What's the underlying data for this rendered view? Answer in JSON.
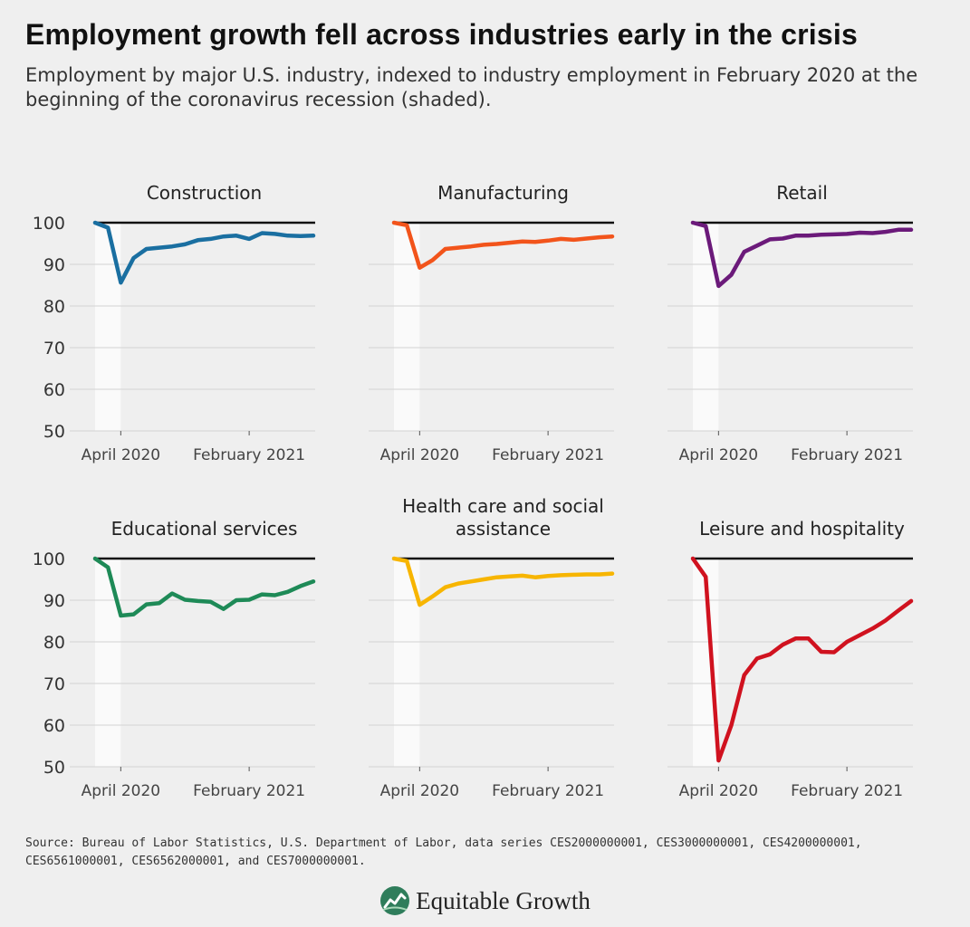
{
  "header": {
    "title": "Employment growth fell across industries early in the crisis",
    "subtitle": "Employment by major U.S. industry, indexed to industry employment in February 2020 at the beginning of the coronavirus recession (shaded)."
  },
  "chart_data": [
    {
      "type": "line",
      "title": "Construction",
      "color": "#1a6fa1",
      "x": [
        "2020-02",
        "2020-03",
        "2020-04",
        "2020-05",
        "2020-06",
        "2020-07",
        "2020-08",
        "2020-09",
        "2020-10",
        "2020-11",
        "2020-12",
        "2021-01",
        "2021-02",
        "2021-03",
        "2021-04",
        "2021-05",
        "2021-06",
        "2021-07"
      ],
      "values": [
        100,
        98.8,
        85.6,
        91.5,
        93.7,
        94.0,
        94.3,
        94.8,
        95.8,
        96.1,
        96.7,
        96.9,
        96.1,
        97.5,
        97.3,
        96.9,
        96.8,
        96.9
      ],
      "ylim": [
        50,
        100
      ],
      "yticks": [
        100,
        90,
        80,
        70,
        60,
        50
      ],
      "xticks": [
        "April 2020",
        "February 2021"
      ],
      "recession_shading": [
        "2020-02",
        "2020-04"
      ],
      "baseline": 100
    },
    {
      "type": "line",
      "title": "Manufacturing",
      "color": "#f2541b",
      "x": [
        "2020-02",
        "2020-03",
        "2020-04",
        "2020-05",
        "2020-06",
        "2020-07",
        "2020-08",
        "2020-09",
        "2020-10",
        "2020-11",
        "2020-12",
        "2021-01",
        "2021-02",
        "2021-03",
        "2021-04",
        "2021-05",
        "2021-06",
        "2021-07"
      ],
      "values": [
        100,
        99.4,
        89.2,
        91.0,
        93.7,
        94.0,
        94.3,
        94.7,
        94.9,
        95.2,
        95.5,
        95.4,
        95.7,
        96.1,
        95.9,
        96.2,
        96.5,
        96.7
      ],
      "ylim": [
        50,
        100
      ],
      "yticks": [
        100,
        90,
        80,
        70,
        60,
        50
      ],
      "xticks": [
        "April 2020",
        "February 2021"
      ],
      "recession_shading": [
        "2020-02",
        "2020-04"
      ],
      "baseline": 100
    },
    {
      "type": "line",
      "title": "Retail",
      "color": "#6b1a7a",
      "x": [
        "2020-02",
        "2020-03",
        "2020-04",
        "2020-05",
        "2020-06",
        "2020-07",
        "2020-08",
        "2020-09",
        "2020-10",
        "2020-11",
        "2020-12",
        "2021-01",
        "2021-02",
        "2021-03",
        "2021-04",
        "2021-05",
        "2021-06",
        "2021-07"
      ],
      "values": [
        100,
        99.2,
        84.8,
        87.5,
        93.0,
        94.5,
        96.0,
        96.2,
        96.9,
        96.9,
        97.1,
        97.2,
        97.3,
        97.6,
        97.5,
        97.8,
        98.3,
        98.3
      ],
      "ylim": [
        50,
        100
      ],
      "yticks": [
        100,
        90,
        80,
        70,
        60,
        50
      ],
      "xticks": [
        "April 2020",
        "February 2021"
      ],
      "recession_shading": [
        "2020-02",
        "2020-04"
      ],
      "baseline": 100
    },
    {
      "type": "line",
      "title": "Educational services",
      "color": "#1e8a57",
      "x": [
        "2020-02",
        "2020-03",
        "2020-04",
        "2020-05",
        "2020-06",
        "2020-07",
        "2020-08",
        "2020-09",
        "2020-10",
        "2020-11",
        "2020-12",
        "2021-01",
        "2021-02",
        "2021-03",
        "2021-04",
        "2021-05",
        "2021-06",
        "2021-07"
      ],
      "values": [
        100,
        97.9,
        86.3,
        86.6,
        89.0,
        89.3,
        91.6,
        90.1,
        89.8,
        89.6,
        87.9,
        90.0,
        90.1,
        91.4,
        91.2,
        92.0,
        93.4,
        94.5
      ],
      "ylim": [
        50,
        100
      ],
      "yticks": [
        100,
        90,
        80,
        70,
        60,
        50
      ],
      "xticks": [
        "April 2020",
        "February 2021"
      ],
      "recession_shading": [
        "2020-02",
        "2020-04"
      ],
      "baseline": 100
    },
    {
      "type": "line",
      "title": "Health care and social assistance",
      "color": "#f7b500",
      "x": [
        "2020-02",
        "2020-03",
        "2020-04",
        "2020-05",
        "2020-06",
        "2020-07",
        "2020-08",
        "2020-09",
        "2020-10",
        "2020-11",
        "2020-12",
        "2021-01",
        "2021-02",
        "2021-03",
        "2021-04",
        "2021-05",
        "2021-06",
        "2021-07"
      ],
      "values": [
        100,
        99.4,
        88.9,
        90.9,
        93.1,
        94.0,
        94.5,
        95.0,
        95.5,
        95.7,
        95.9,
        95.5,
        95.8,
        96.0,
        96.1,
        96.2,
        96.2,
        96.4
      ],
      "ylim": [
        50,
        100
      ],
      "yticks": [
        100,
        90,
        80,
        70,
        60,
        50
      ],
      "xticks": [
        "April 2020",
        "February 2021"
      ],
      "recession_shading": [
        "2020-02",
        "2020-04"
      ],
      "baseline": 100
    },
    {
      "type": "line",
      "title": "Leisure and hospitality",
      "color": "#d0121f",
      "x": [
        "2020-02",
        "2020-03",
        "2020-04",
        "2020-05",
        "2020-06",
        "2020-07",
        "2020-08",
        "2020-09",
        "2020-10",
        "2020-11",
        "2020-12",
        "2021-01",
        "2021-02",
        "2021-03",
        "2021-04",
        "2021-05",
        "2021-06",
        "2021-07"
      ],
      "values": [
        100,
        95.6,
        51.5,
        60.0,
        72.0,
        76.0,
        77.0,
        79.3,
        80.8,
        80.8,
        77.6,
        77.5,
        80.0,
        81.6,
        83.2,
        85.1,
        87.5,
        89.8
      ],
      "ylim": [
        50,
        100
      ],
      "yticks": [
        100,
        90,
        80,
        70,
        60,
        50
      ],
      "xticks": [
        "April 2020",
        "February 2021"
      ],
      "recession_shading": [
        "2020-02",
        "2020-04"
      ],
      "baseline": 100
    }
  ],
  "footer": {
    "source": "Source: Bureau of Labor Statistics, U.S. Department of Labor, data series CES2000000001, CES3000000001, CES4200000001, CES6561000001, CES6562000001, and CES7000000001.",
    "brand_name": "Equitable Growth",
    "brand_logo_icon": "equitable-growth-logo-icon"
  }
}
